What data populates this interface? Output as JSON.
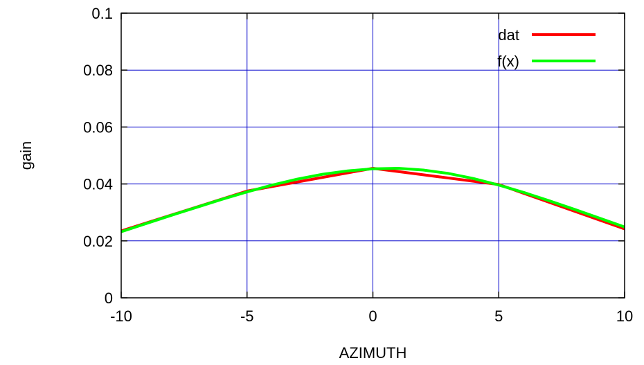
{
  "chart_data": {
    "type": "line",
    "title": "",
    "xlabel": "AZIMUTH",
    "ylabel": "gain",
    "xlim": [
      -10,
      10
    ],
    "ylim": [
      0,
      0.1
    ],
    "x_ticks": [
      -10,
      -5,
      0,
      5,
      10
    ],
    "x_tick_labels": [
      "-10",
      "-5",
      "0",
      "5",
      "10"
    ],
    "y_ticks": [
      0,
      0.02,
      0.04,
      0.06,
      0.08,
      0.1
    ],
    "y_tick_labels": [
      "0",
      "0.02",
      "0.04",
      "0.06",
      "0.08",
      "0.1"
    ],
    "grid": true,
    "grid_color": "#0000cc",
    "legend_position": "top-right",
    "series": [
      {
        "name": "dat",
        "color": "#ff0000",
        "x": [
          -10,
          -5,
          0,
          5,
          10
        ],
        "y": [
          0.0235,
          0.0375,
          0.0455,
          0.0398,
          0.0242
        ]
      },
      {
        "name": "f(x)",
        "color": "#00ff00",
        "x": [
          -10,
          -9,
          -8,
          -7,
          -6,
          -5,
          -4,
          -3,
          -2,
          -1,
          0,
          1,
          2,
          3,
          4,
          5,
          6,
          7,
          8,
          9,
          10
        ],
        "y": [
          0.0232,
          0.0261,
          0.029,
          0.0318,
          0.0346,
          0.0372,
          0.0396,
          0.0417,
          0.0434,
          0.0446,
          0.0453,
          0.0455,
          0.0449,
          0.0437,
          0.0419,
          0.0396,
          0.037,
          0.0341,
          0.0311,
          0.028,
          0.0249
        ]
      }
    ]
  }
}
